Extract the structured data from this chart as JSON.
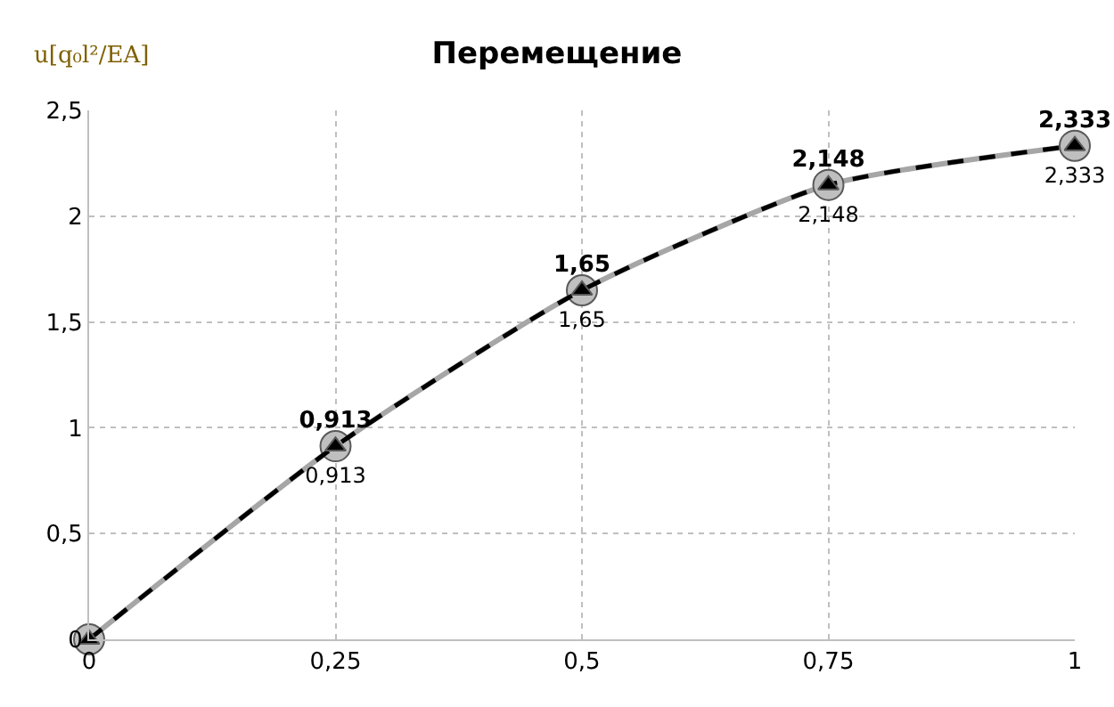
{
  "chart_data": {
    "type": "line",
    "title": "Перемещение",
    "ylabel": "u[q₀l²/EA]",
    "x": [
      0,
      0.25,
      0.5,
      0.75,
      1
    ],
    "series": [
      {
        "color": "#a6a6a6",
        "marker": "circle",
        "line_style": "solid",
        "values": [
          0,
          0.913,
          1.65,
          2.148,
          2.333
        ],
        "value_labels": [
          null,
          "0,913",
          "1,65",
          "2,148",
          "2,333"
        ]
      },
      {
        "color": "#000000",
        "marker": "triangle",
        "line_style": "dashed",
        "values": [
          0,
          0.913,
          1.65,
          2.148,
          2.333
        ],
        "value_labels": [
          null,
          "0,913",
          "1,65",
          "2,148",
          "2,333"
        ]
      }
    ],
    "xlim": [
      0,
      1
    ],
    "xticks": [
      0,
      {
        "value": 0.25,
        "label": "0,25"
      },
      {
        "value": 0.5,
        "label": "0,5"
      },
      {
        "value": 0.75,
        "label": "0,75"
      },
      1
    ],
    "ylim": [
      0,
      2.5
    ],
    "yticks": [
      0,
      {
        "value": 0.5,
        "label": "0,5"
      },
      1,
      {
        "value": 1.5,
        "label": "1,5"
      },
      2,
      {
        "value": 2.5,
        "label": "2,5"
      }
    ],
    "grid": true,
    "legend": false
  }
}
